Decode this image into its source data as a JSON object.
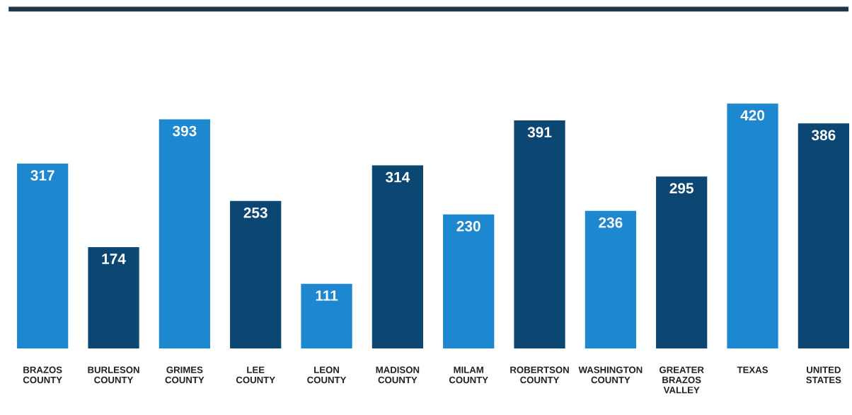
{
  "chart_data": {
    "type": "bar",
    "categories": [
      "BRAZOS COUNTY",
      "BURLESON COUNTY",
      "GRIMES COUNTY",
      "LEE COUNTY",
      "LEON COUNTY",
      "MADISON COUNTY",
      "MILAM COUNTY",
      "ROBERTSON COUNTY",
      "WASHINGTON COUNTY",
      "GREATER BRAZOS VALLEY",
      "TEXAS",
      "UNITED STATES"
    ],
    "values": [
      317,
      174,
      393,
      253,
      111,
      314,
      230,
      391,
      236,
      295,
      420,
      386
    ],
    "colors": [
      "#1d87cf",
      "#0c4673",
      "#1d87cf",
      "#0c4673",
      "#1d87cf",
      "#0c4673",
      "#1d87cf",
      "#0c4673",
      "#1d87cf",
      "#0c4673",
      "#1d87cf",
      "#0c4673"
    ],
    "data_labels": true,
    "grid": false,
    "legend": false
  }
}
